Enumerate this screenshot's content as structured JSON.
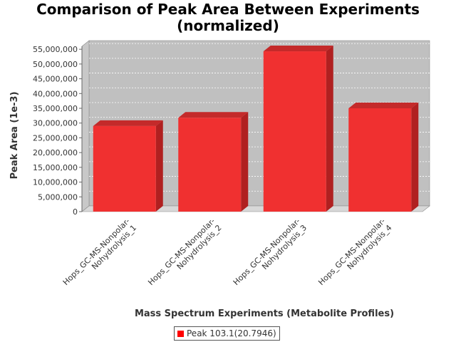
{
  "chart_data": {
    "type": "bar",
    "title_lines": [
      "Comparison of Peak Area Between Experiments",
      "(normalized)"
    ],
    "xlabel": "Mass Spectrum Experiments (Metabolite Profiles)",
    "ylabel": "Peak Area (1e-3)",
    "ylim": [
      0,
      56000000
    ],
    "yticks": [
      0,
      5000000,
      10000000,
      15000000,
      20000000,
      25000000,
      30000000,
      35000000,
      40000000,
      45000000,
      50000000,
      55000000
    ],
    "ytick_labels": [
      "0",
      "5,000,000",
      "10,000,000",
      "15,000,000",
      "20,000,000",
      "25,000,000",
      "30,000,000",
      "35,000,000",
      "40,000,000",
      "45,000,000",
      "50,000,000",
      "55,000,000"
    ],
    "categories": [
      [
        "Hops_GC-MS-Nonpolar-",
        "Nohydrolysis_1"
      ],
      [
        "Hops_GC-MS-Nonpolar-",
        "Nohydrolysis_2"
      ],
      [
        "Hops_GC-MS-Nonpolar-",
        "Nohydrolysis_3"
      ],
      [
        "Hops_GC-MS-Nonpolar-",
        "Nohydrolysis_4"
      ]
    ],
    "series": [
      {
        "name": "Peak 103.1(20.7946)",
        "values": [
          29000000,
          31800000,
          54300000,
          35000000
        ]
      }
    ],
    "bar_color": "#ff0000",
    "plot_background": "#c0c0c0",
    "grid": true,
    "legend_position": "bottom-center"
  }
}
